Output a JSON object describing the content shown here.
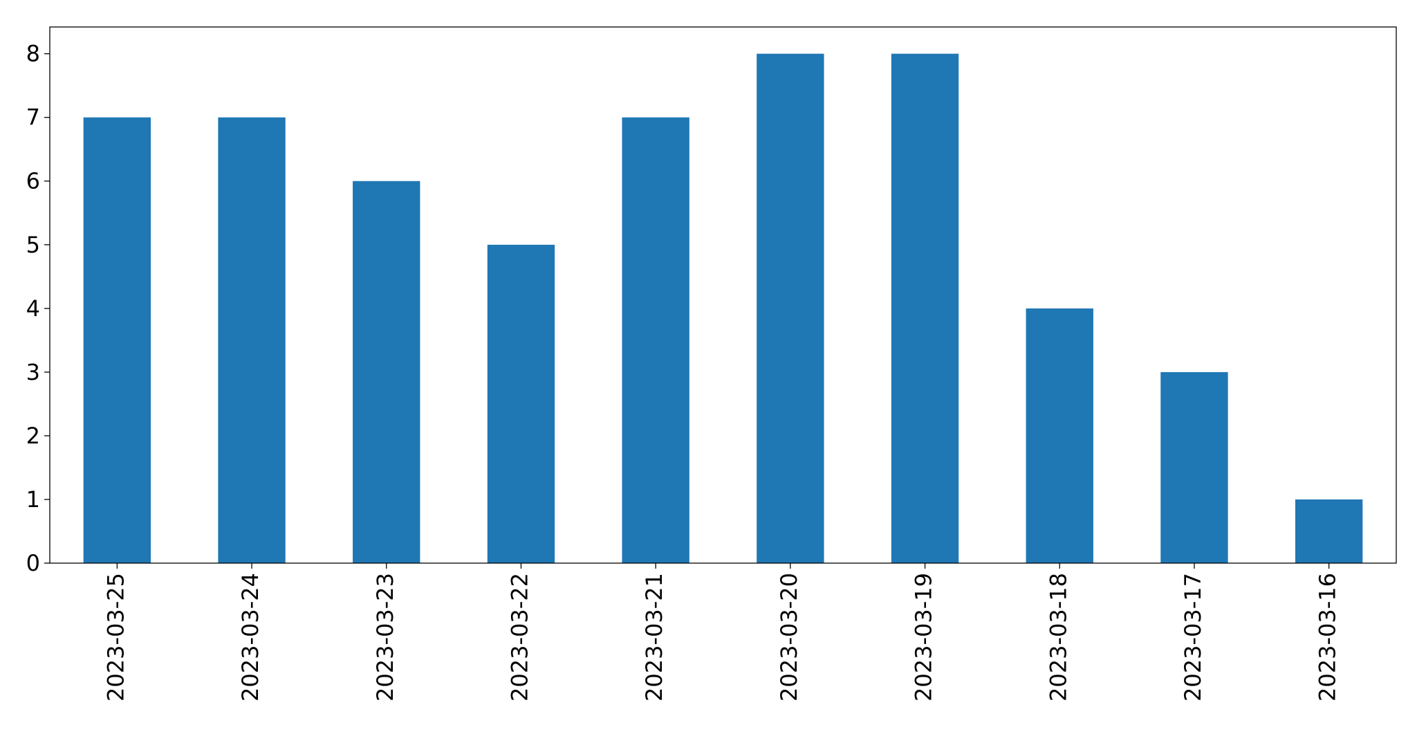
{
  "chart_data": {
    "type": "bar",
    "categories": [
      "2023-03-25",
      "2023-03-24",
      "2023-03-23",
      "2023-03-22",
      "2023-03-21",
      "2023-03-20",
      "2023-03-19",
      "2023-03-18",
      "2023-03-17",
      "2023-03-16"
    ],
    "values": [
      7,
      7,
      6,
      5,
      7,
      8,
      8,
      4,
      3,
      1
    ],
    "color": "#1f77b4",
    "ylim": [
      0,
      8.42
    ],
    "yticks": [
      0,
      1,
      2,
      3,
      4,
      5,
      6,
      7,
      8
    ],
    "grid": false
  }
}
